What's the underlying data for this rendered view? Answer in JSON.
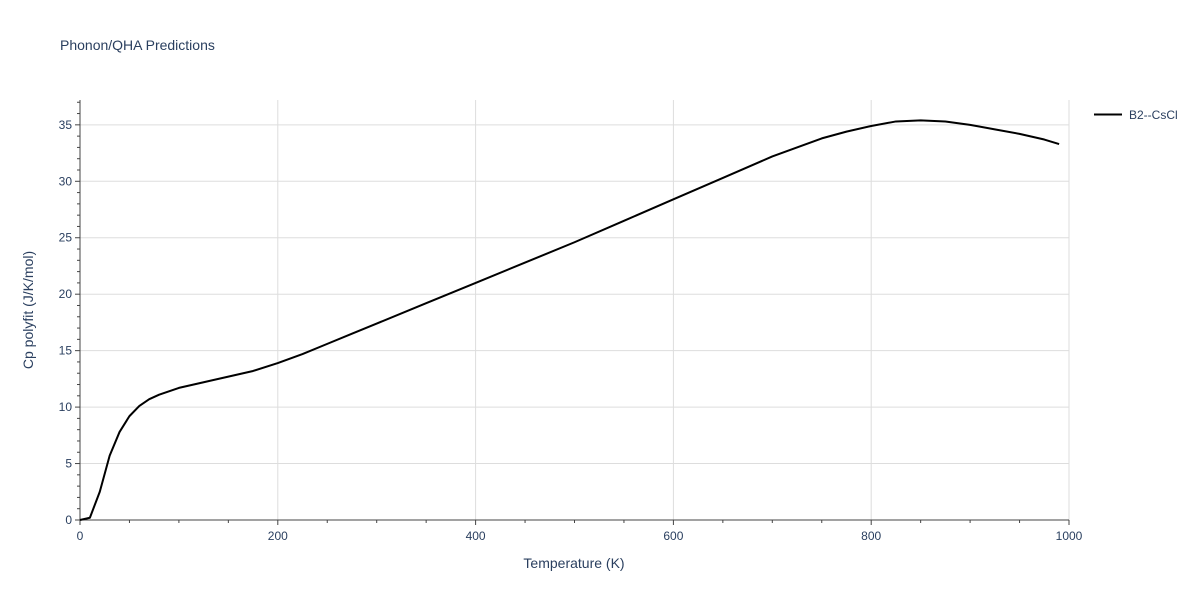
{
  "chart_data": {
    "type": "line",
    "title": "Phonon/QHA Predictions",
    "xlabel": "Temperature (K)",
    "ylabel": "Cp polyfit (J/K/mol)",
    "xlim": [
      0,
      1000
    ],
    "ylim": [
      0,
      37.2
    ],
    "xticks": [
      0,
      200,
      400,
      600,
      800,
      1000
    ],
    "yticks": [
      0,
      5,
      10,
      15,
      20,
      25,
      30,
      35
    ],
    "grid": true,
    "legend_position": "top-right",
    "line_color": "#000000",
    "series": [
      {
        "name": "B2--CsCl",
        "x": [
          0,
          10,
          20,
          30,
          40,
          50,
          60,
          70,
          80,
          100,
          125,
          150,
          175,
          200,
          225,
          250,
          275,
          300,
          350,
          400,
          450,
          500,
          550,
          600,
          650,
          700,
          725,
          750,
          775,
          800,
          825,
          850,
          875,
          900,
          925,
          950,
          975,
          990
        ],
        "y": [
          0,
          0.2,
          2.5,
          5.7,
          7.8,
          9.2,
          10.1,
          10.7,
          11.1,
          11.7,
          12.2,
          12.7,
          13.2,
          13.9,
          14.7,
          15.6,
          16.5,
          17.4,
          19.2,
          21.0,
          22.8,
          24.6,
          26.5,
          28.4,
          30.3,
          32.2,
          33.0,
          33.8,
          34.4,
          34.9,
          35.3,
          35.4,
          35.3,
          35.0,
          34.6,
          34.2,
          33.7,
          33.3
        ]
      }
    ]
  }
}
